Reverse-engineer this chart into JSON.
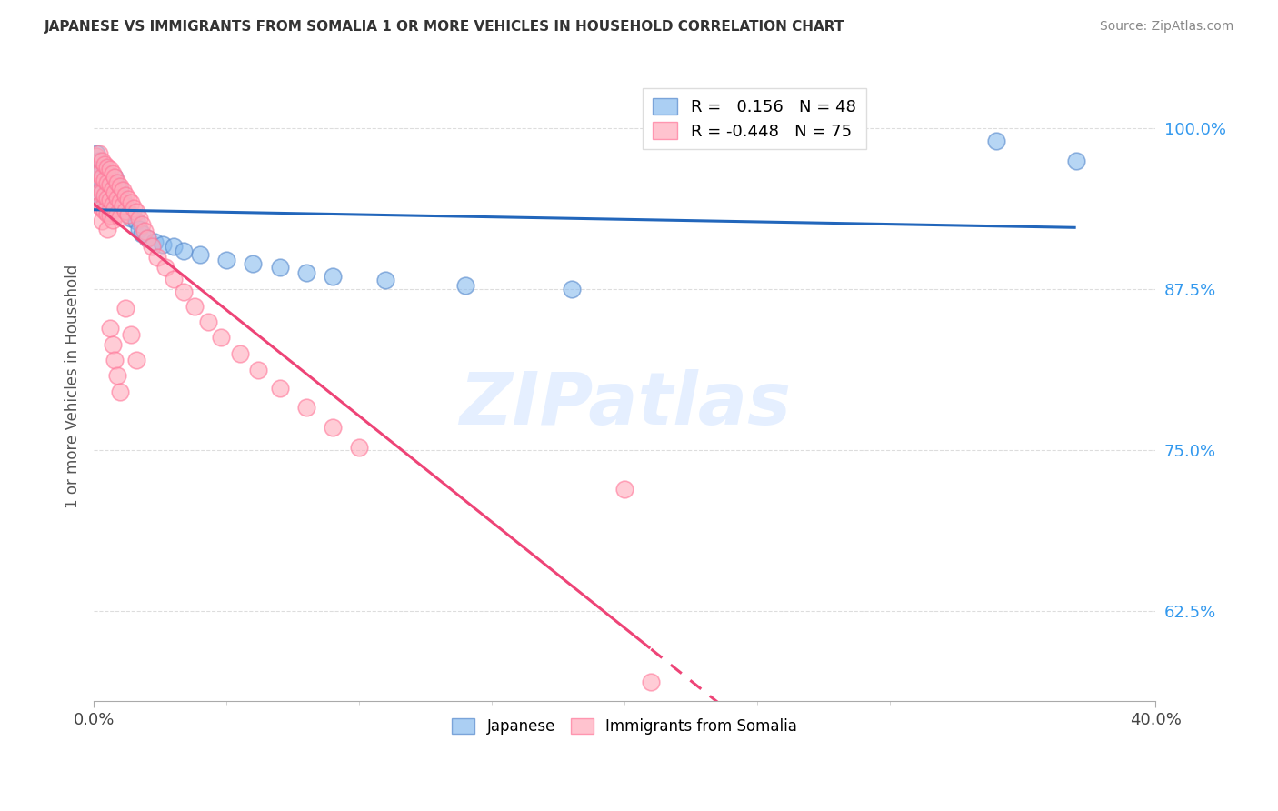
{
  "title": "JAPANESE VS IMMIGRANTS FROM SOMALIA 1 OR MORE VEHICLES IN HOUSEHOLD CORRELATION CHART",
  "source": "Source: ZipAtlas.com",
  "ylabel": "1 or more Vehicles in Household",
  "yticks": [
    1.0,
    0.875,
    0.75,
    0.625
  ],
  "ytick_labels": [
    "100.0%",
    "87.5%",
    "75.0%",
    "62.5%"
  ],
  "xmin": 0.0,
  "xmax": 0.4,
  "ymin": 0.555,
  "ymax": 1.045,
  "legend_r_japanese": "R =   0.156",
  "legend_n_japanese": "N = 48",
  "legend_r_somalia": "R = -0.448",
  "legend_n_somalia": "N = 75",
  "japanese_color": "#88BBEE",
  "somalia_color": "#FFAABB",
  "japanese_edge_color": "#5588CC",
  "somalia_edge_color": "#FF7799",
  "japanese_line_color": "#2266BB",
  "somalia_line_color": "#EE4477",
  "watermark": "ZIPatlas",
  "japanese_x": [
    0.001,
    0.001,
    0.002,
    0.002,
    0.002,
    0.003,
    0.003,
    0.003,
    0.004,
    0.004,
    0.004,
    0.005,
    0.005,
    0.005,
    0.006,
    0.006,
    0.006,
    0.007,
    0.007,
    0.008,
    0.008,
    0.009,
    0.009,
    0.01,
    0.01,
    0.011,
    0.012,
    0.013,
    0.014,
    0.016,
    0.017,
    0.018,
    0.02,
    0.023,
    0.026,
    0.03,
    0.034,
    0.04,
    0.05,
    0.06,
    0.07,
    0.08,
    0.09,
    0.11,
    0.14,
    0.18,
    0.34,
    0.37
  ],
  "japanese_y": [
    0.98,
    0.963,
    0.975,
    0.96,
    0.95,
    0.968,
    0.955,
    0.942,
    0.97,
    0.958,
    0.945,
    0.965,
    0.952,
    0.94,
    0.96,
    0.948,
    0.935,
    0.958,
    0.945,
    0.962,
    0.95,
    0.955,
    0.94,
    0.952,
    0.938,
    0.945,
    0.94,
    0.935,
    0.93,
    0.928,
    0.922,
    0.918,
    0.915,
    0.912,
    0.91,
    0.908,
    0.905,
    0.902,
    0.898,
    0.895,
    0.892,
    0.888,
    0.885,
    0.882,
    0.878,
    0.875,
    0.99,
    0.975
  ],
  "somalia_x": [
    0.001,
    0.001,
    0.001,
    0.002,
    0.002,
    0.002,
    0.002,
    0.003,
    0.003,
    0.003,
    0.003,
    0.003,
    0.004,
    0.004,
    0.004,
    0.004,
    0.005,
    0.005,
    0.005,
    0.005,
    0.005,
    0.006,
    0.006,
    0.006,
    0.006,
    0.007,
    0.007,
    0.007,
    0.007,
    0.008,
    0.008,
    0.008,
    0.009,
    0.009,
    0.009,
    0.01,
    0.01,
    0.01,
    0.011,
    0.011,
    0.012,
    0.012,
    0.013,
    0.013,
    0.014,
    0.015,
    0.016,
    0.017,
    0.018,
    0.019,
    0.02,
    0.022,
    0.024,
    0.027,
    0.03,
    0.034,
    0.038,
    0.043,
    0.048,
    0.055,
    0.062,
    0.07,
    0.08,
    0.09,
    0.1,
    0.012,
    0.014,
    0.016,
    0.006,
    0.007,
    0.008,
    0.009,
    0.01,
    0.2,
    0.21
  ],
  "somalia_y": [
    0.978,
    0.965,
    0.955,
    0.98,
    0.965,
    0.95,
    0.94,
    0.975,
    0.962,
    0.95,
    0.938,
    0.928,
    0.972,
    0.96,
    0.948,
    0.936,
    0.97,
    0.958,
    0.946,
    0.934,
    0.922,
    0.968,
    0.956,
    0.944,
    0.932,
    0.965,
    0.953,
    0.941,
    0.929,
    0.962,
    0.95,
    0.938,
    0.958,
    0.946,
    0.934,
    0.955,
    0.943,
    0.931,
    0.952,
    0.94,
    0.948,
    0.936,
    0.945,
    0.933,
    0.942,
    0.938,
    0.935,
    0.93,
    0.925,
    0.92,
    0.915,
    0.908,
    0.9,
    0.892,
    0.883,
    0.873,
    0.862,
    0.85,
    0.838,
    0.825,
    0.812,
    0.798,
    0.783,
    0.768,
    0.752,
    0.86,
    0.84,
    0.82,
    0.845,
    0.832,
    0.82,
    0.808,
    0.795,
    0.72,
    0.57
  ],
  "grid_color": "#DDDDDD",
  "background_color": "#FFFFFF"
}
